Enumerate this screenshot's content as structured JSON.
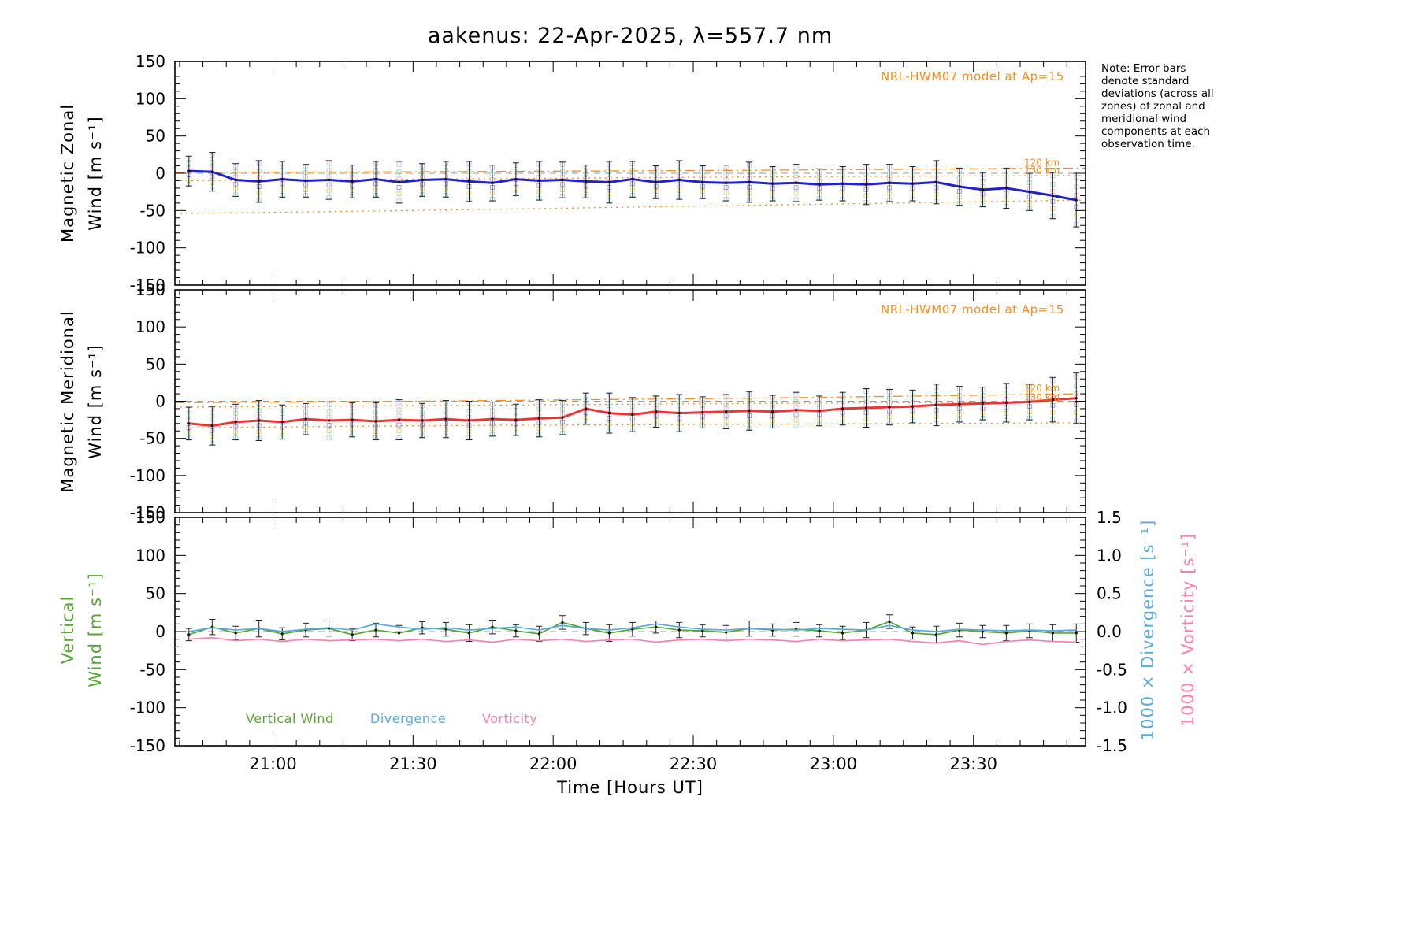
{
  "note": "Note: Error bars denote standard deviations (across all zones) of zonal and meridional wind components at each observation time.",
  "chart_data": {
    "type": "line",
    "title": "aakenus: 22-Apr-2025, λ=557.7 nm",
    "x": {
      "label": "Time [Hours UT]",
      "range": [
        20.65,
        23.9
      ],
      "major_ticks": [
        21.0,
        21.5,
        22.0,
        22.5,
        23.0,
        23.5
      ],
      "major_labels": [
        "21:00",
        "21:30",
        "22:00",
        "22:30",
        "23:00",
        "23:30"
      ],
      "minor_step": 0.0833333
    },
    "times": [
      20.7,
      20.783,
      20.867,
      20.95,
      21.033,
      21.117,
      21.2,
      21.283,
      21.367,
      21.45,
      21.533,
      21.617,
      21.7,
      21.783,
      21.867,
      21.95,
      22.033,
      22.117,
      22.2,
      22.283,
      22.367,
      22.45,
      22.533,
      22.617,
      22.7,
      22.783,
      22.867,
      22.95,
      23.033,
      23.117,
      23.2,
      23.283,
      23.367,
      23.45,
      23.533,
      23.617,
      23.7,
      23.783,
      23.867
    ],
    "zones": {
      "colors": [
        "#9adfe8",
        "#e6d877",
        "#a79ae0",
        "#f2b8d8",
        "#a8e0b8",
        "#c3cdf2"
      ],
      "fractions": [
        -1,
        -0.62,
        -0.28,
        0.2,
        0.55,
        0.95
      ]
    },
    "panels": [
      {
        "name": "magnetic-zonal-wind",
        "ylabel_1": "Magnetic Zonal",
        "ylabel_2": "Wind [m s⁻¹]",
        "ylabel_color": "#000000",
        "ylim": [
          -150,
          150
        ],
        "ystep": 50,
        "yminor": 10,
        "annotation": "NRL-HWM07 model at Ap=15",
        "annotation_color": "#ff8c1a",
        "zero_line": true,
        "altitude_labels": [
          {
            "text": "120 km",
            "value": 7
          },
          {
            "text": "130 km",
            "value": -3
          }
        ],
        "model_lines": [
          {
            "name": "hwm-120km",
            "style": "dashdot",
            "color": "#ff8c1a",
            "t": [
              20.65,
              21.5,
              22.7,
              23.9
            ],
            "v": [
              1,
              2,
              4,
              7
            ]
          },
          {
            "name": "hwm-130km",
            "style": "dotted",
            "color": "#ff8c1a",
            "t": [
              20.65,
              21.5,
              22.7,
              23.9
            ],
            "v": [
              -10,
              -8,
              -5,
              -3
            ]
          },
          {
            "name": "hwm-low",
            "style": "dotted",
            "color": "#ff8c1a",
            "t": [
              20.65,
              21.5,
              22.7,
              23.9
            ],
            "v": [
              -54,
              -50,
              -43,
              -36
            ]
          }
        ],
        "series": [
          {
            "name": "zonal-wind",
            "color": "#2020cc",
            "width": 3,
            "axis": "left",
            "scatter": true,
            "markers": true,
            "values": [
              3,
              2,
              -9,
              -11,
              -8,
              -10,
              -9,
              -11,
              -8,
              -12,
              -9,
              -8,
              -11,
              -13,
              -8,
              -10,
              -9,
              -11,
              -12,
              -8,
              -12,
              -9,
              -12,
              -13,
              -12,
              -14,
              -13,
              -15,
              -14,
              -15,
              -13,
              -14,
              -12,
              -18,
              -22,
              -20,
              -25,
              -30,
              -36
            ],
            "sigma": [
              20,
              26,
              22,
              28,
              24,
              22,
              26,
              22,
              24,
              28,
              22,
              24,
              27,
              24,
              22,
              26,
              24,
              22,
              28,
              24,
              22,
              26,
              22,
              24,
              27,
              23,
              25,
              21,
              23,
              27,
              25,
              23,
              29,
              25,
              23,
              27,
              25,
              31,
              36
            ]
          }
        ]
      },
      {
        "name": "magnetic-meridional-wind",
        "ylabel_1": "Magnetic Meridional",
        "ylabel_2": "Wind [m s⁻¹]",
        "ylabel_color": "#000000",
        "ylim": [
          -150,
          150
        ],
        "ystep": 50,
        "yminor": 10,
        "annotation": "NRL-HWM07 model at Ap=15",
        "annotation_color": "#ff8c1a",
        "zero_line": true,
        "altitude_labels": [
          {
            "text": "120 km",
            "value": 10
          },
          {
            "text": "130 km",
            "value": -2
          }
        ],
        "model_lines": [
          {
            "name": "hwm-120km",
            "style": "dashdot",
            "color": "#ff8c1a",
            "t": [
              20.65,
              21.5,
              22.7,
              23.9
            ],
            "v": [
              -2,
              0,
              4,
              10
            ]
          },
          {
            "name": "hwm-130km",
            "style": "dotted",
            "color": "#ff8c1a",
            "t": [
              20.65,
              21.5,
              22.7,
              23.9
            ],
            "v": [
              -8,
              -6,
              -3,
              -1
            ]
          },
          {
            "name": "hwm-low",
            "style": "dotted",
            "color": "#ff8c1a",
            "t": [
              20.65,
              21.5,
              22.7,
              23.9
            ],
            "v": [
              -36,
              -33,
              -31,
              -29
            ]
          }
        ],
        "series": [
          {
            "name": "meridional-wind",
            "color": "#ee3333",
            "width": 3,
            "axis": "left",
            "scatter": true,
            "markers": true,
            "values": [
              -30,
              -33,
              -28,
              -26,
              -28,
              -24,
              -26,
              -25,
              -27,
              -25,
              -26,
              -24,
              -26,
              -24,
              -25,
              -23,
              -22,
              -10,
              -16,
              -18,
              -14,
              -16,
              -15,
              -14,
              -13,
              -14,
              -12,
              -13,
              -10,
              -9,
              -8,
              -7,
              -5,
              -4,
              -3,
              -2,
              -1,
              2,
              4
            ],
            "sigma": [
              22,
              26,
              24,
              27,
              23,
              21,
              25,
              23,
              25,
              27,
              23,
              25,
              26,
              23,
              21,
              25,
              23,
              21,
              27,
              23,
              21,
              25,
              21,
              23,
              26,
              22,
              24,
              20,
              22,
              26,
              24,
              22,
              28,
              24,
              22,
              26,
              24,
              30,
              34
            ]
          }
        ]
      },
      {
        "name": "vertical-wind-divergence-vorticity",
        "ylabel_1": "Vertical",
        "ylabel_2": "Wind [m s⁻¹]",
        "ylabel_color": "#56a632",
        "ylim": [
          -150,
          150
        ],
        "ystep": 50,
        "yminor": 10,
        "right_ylim": [
          -1.5,
          1.5
        ],
        "right_step": 0.5,
        "right_minor": 0.1,
        "right_axes": [
          {
            "label": "1000 × Divergence [s⁻¹]",
            "color": "#56aadc"
          },
          {
            "label": "1000 × Vorticity [s⁻¹]",
            "color": "#ff80b0"
          }
        ],
        "zero_line": true,
        "model_lines": [],
        "series": [
          {
            "name": "vertical-wind",
            "color": "#56a632",
            "width": 1.7,
            "axis": "left",
            "markers": true,
            "values": [
              -4,
              6,
              -2,
              4,
              -3,
              2,
              4,
              -4,
              2,
              -2,
              5,
              3,
              -2,
              6,
              1,
              -3,
              12,
              4,
              -2,
              3,
              6,
              2,
              1,
              -1,
              4,
              2,
              3,
              1,
              -2,
              2,
              13,
              -2,
              -4,
              2,
              0,
              -2,
              1,
              -2,
              -2
            ],
            "sigma": [
              8,
              10,
              9,
              11,
              8,
              9,
              10,
              8,
              9,
              10,
              8,
              9,
              11,
              9,
              8,
              10,
              9,
              8,
              11,
              9,
              8,
              10,
              8,
              9,
              10,
              8,
              9,
              8,
              9,
              10,
              9,
              8,
              11,
              9,
              8,
              10,
              9,
              11,
              12
            ]
          },
          {
            "name": "divergence",
            "color": "#56aadc",
            "width": 1.7,
            "axis": "right",
            "values": [
              0.0,
              0.05,
              0.02,
              0.04,
              0.0,
              0.03,
              0.05,
              0.02,
              0.1,
              0.06,
              0.03,
              0.05,
              0.02,
              0.04,
              0.06,
              0.02,
              0.08,
              0.04,
              0.02,
              0.05,
              0.1,
              0.06,
              0.03,
              0.02,
              0.04,
              0.03,
              0.02,
              0.04,
              0.03,
              0.02,
              0.08,
              0.02,
              0.0,
              0.03,
              0.02,
              0.01,
              0.02,
              0.01,
              0.02
            ]
          },
          {
            "name": "vorticity",
            "color": "#ff80b0",
            "width": 1.7,
            "axis": "right",
            "values": [
              -0.1,
              -0.08,
              -0.12,
              -0.1,
              -0.13,
              -0.1,
              -0.12,
              -0.11,
              -0.1,
              -0.12,
              -0.1,
              -0.13,
              -0.11,
              -0.14,
              -0.1,
              -0.12,
              -0.1,
              -0.13,
              -0.11,
              -0.1,
              -0.14,
              -0.11,
              -0.1,
              -0.12,
              -0.1,
              -0.11,
              -0.13,
              -0.1,
              -0.12,
              -0.11,
              -0.1,
              -0.13,
              -0.15,
              -0.12,
              -0.17,
              -0.13,
              -0.11,
              -0.13,
              -0.14
            ]
          }
        ]
      }
    ],
    "legend": [
      {
        "label": "Vertical Wind",
        "color": "#56a632"
      },
      {
        "label": "Divergence",
        "color": "#56aadc"
      },
      {
        "label": "Vorticity",
        "color": "#ff80b0"
      }
    ]
  }
}
